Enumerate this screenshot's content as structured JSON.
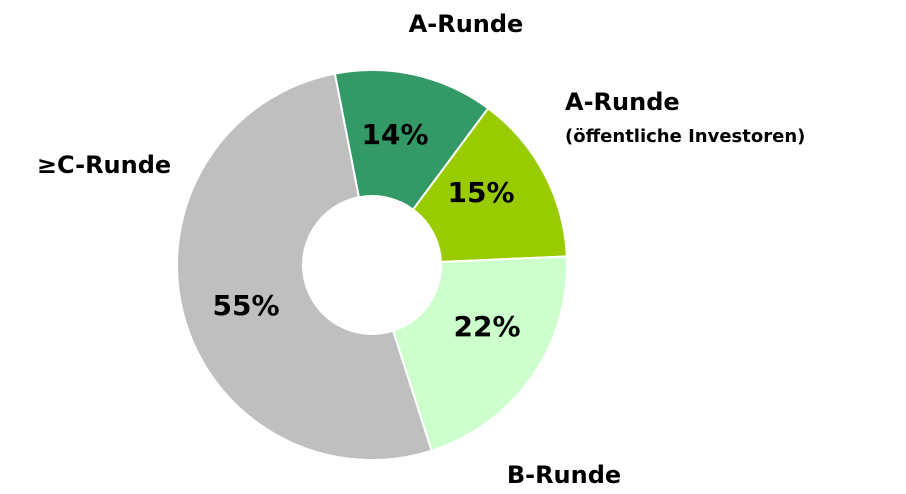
{
  "chart_data": {
    "type": "donut",
    "categories": [
      "A-Runde",
      "A-Runde",
      "B-Runde",
      "≥C-Runde"
    ],
    "category_subtitles": [
      null,
      "(öffentliche Investoren)",
      null,
      null
    ],
    "values": [
      14,
      15,
      22,
      55
    ],
    "value_labels": [
      "14%",
      "15%",
      "22%",
      "55%"
    ],
    "colors": [
      "#339966",
      "#99cc00",
      "#ccffcc",
      "#bfbfbf"
    ]
  }
}
